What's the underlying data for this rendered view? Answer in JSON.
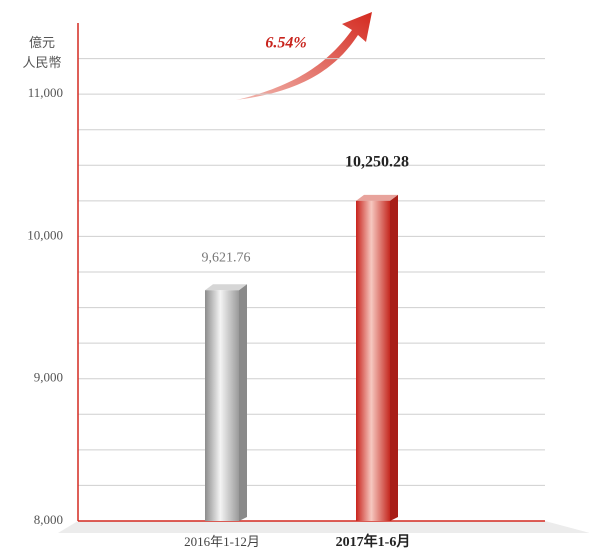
{
  "chart_data": {
    "type": "bar",
    "ylabel_lines": [
      "億元",
      "人民幣"
    ],
    "annotation": "6.54%",
    "categories": [
      "2016年1-12月",
      "2017年1-6月"
    ],
    "values": [
      9621.76,
      10250.28
    ],
    "value_labels": [
      "9,621.76",
      "10,250.28"
    ],
    "colors": [
      "#b8b8b8",
      "#d9332b"
    ],
    "ylim": [
      8000,
      11500
    ],
    "yticks": [
      {
        "value": 8000,
        "label": "8,000"
      },
      {
        "value": 9000,
        "label": "9,000"
      },
      {
        "value": 10000,
        "label": "10,000"
      },
      {
        "value": 11000,
        "label": "11,000"
      }
    ],
    "yminor": [
      8250,
      8500,
      8750,
      9250,
      9500,
      9750,
      10250,
      10500,
      10750,
      11250
    ],
    "grid": true
  }
}
